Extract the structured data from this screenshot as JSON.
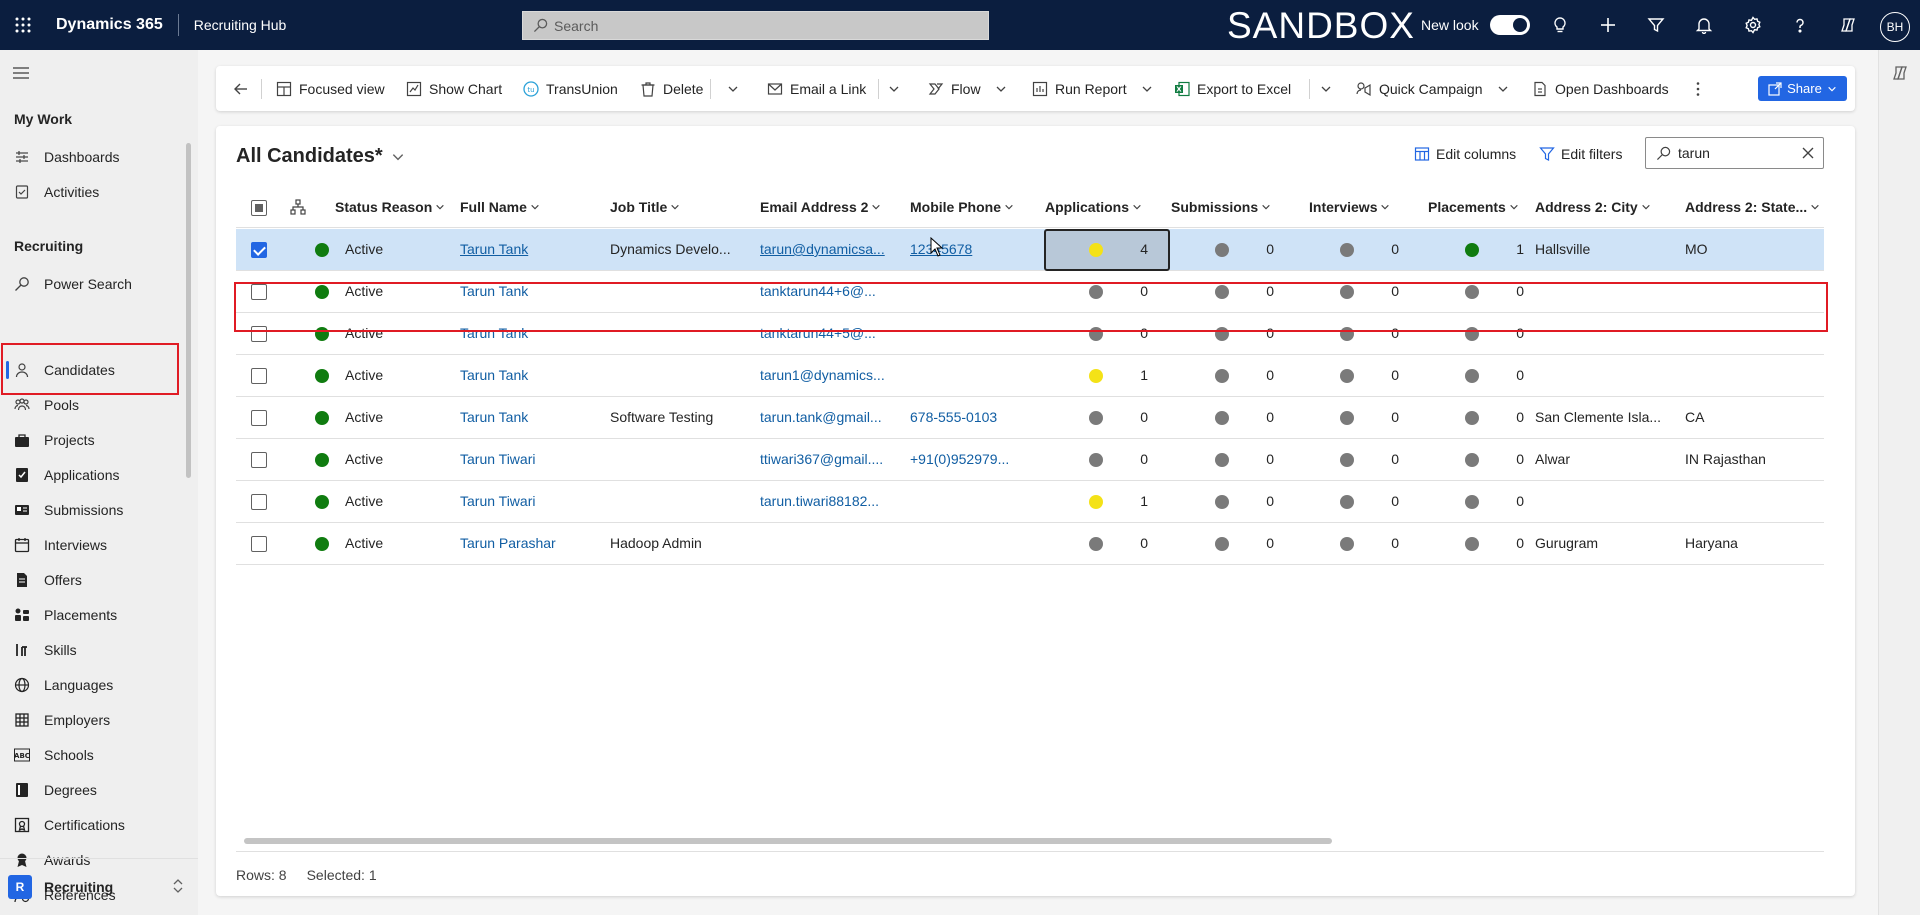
{
  "topbar": {
    "product": "Dynamics 365",
    "app": "Recruiting Hub",
    "search_placeholder": "Search",
    "environment": "SANDBOX",
    "new_look_label": "New look",
    "new_look_on": true,
    "user_initials": "BH",
    "icons": [
      "waffle-icon",
      "lightbulb-icon",
      "plus-icon",
      "filter-icon",
      "bell-icon",
      "gear-icon",
      "help-icon",
      "copilot-icon"
    ]
  },
  "sidebar": {
    "my_work_title": "My Work",
    "my_work": [
      {
        "label": "Dashboards",
        "icon": "dashboard-icon"
      },
      {
        "label": "Activities",
        "icon": "activities-icon"
      }
    ],
    "recruiting_title": "Recruiting",
    "recruiting": [
      {
        "label": "Power Search",
        "icon": "search-icon"
      },
      {
        "label": "Candidates",
        "icon": "person-icon",
        "selected": true
      },
      {
        "label": "Pools",
        "icon": "people-icon"
      },
      {
        "label": "Projects",
        "icon": "briefcase-icon"
      },
      {
        "label": "Applications",
        "icon": "check-doc-icon"
      },
      {
        "label": "Submissions",
        "icon": "card-icon"
      },
      {
        "label": "Interviews",
        "icon": "calendar-icon"
      },
      {
        "label": "Offers",
        "icon": "offer-doc-icon"
      },
      {
        "label": "Placements",
        "icon": "placement-icon"
      },
      {
        "label": "Skills",
        "icon": "skills-icon"
      },
      {
        "label": "Languages",
        "icon": "globe-icon"
      },
      {
        "label": "Employers",
        "icon": "building-icon"
      },
      {
        "label": "Schools",
        "icon": "abc-icon"
      },
      {
        "label": "Degrees",
        "icon": "book-icon"
      },
      {
        "label": "Certifications",
        "icon": "certificate-icon"
      },
      {
        "label": "Awards",
        "icon": "award-icon"
      },
      {
        "label": "References",
        "icon": "reference-icon"
      }
    ],
    "area": {
      "badge": "R",
      "label": "Recruiting"
    }
  },
  "commandbar": {
    "back_icon": "back-arrow-icon",
    "focused_view": "Focused view",
    "show_chart": "Show Chart",
    "transunion": "TransUnion",
    "delete": "Delete",
    "email_link": "Email a Link",
    "flow": "Flow",
    "run_report": "Run Report",
    "export_excel": "Export to Excel",
    "quick_campaign": "Quick Campaign",
    "open_dashboards": "Open Dashboards",
    "share": "Share"
  },
  "view": {
    "title": "All Candidates*",
    "edit_columns": "Edit columns",
    "edit_filters": "Edit filters",
    "quickfind_value": "tarun"
  },
  "columns": [
    "Status Reason",
    "Full Name",
    "Job Title",
    "Email Address 2",
    "Mobile Phone",
    "Applications",
    "Submissions",
    "Interviews",
    "Placements",
    "Address 2: City",
    "Address 2: State..."
  ],
  "status_colors": {
    "green": "#107c10",
    "gray": "#7a7a7a",
    "yellow": "#f4e217"
  },
  "rows": [
    {
      "selected": true,
      "status": "Active",
      "name": "Tarun Tank",
      "job": "Dynamics Develo...",
      "email": "tarun@dynamicsa...",
      "phone": "12345678",
      "apps": "4",
      "apps_color": "yellow",
      "subs": "0",
      "subs_color": "gray",
      "ints": "0",
      "ints_color": "gray",
      "places": "1",
      "places_color": "green",
      "city": "Hallsville",
      "state": "MO"
    },
    {
      "selected": false,
      "status": "Active",
      "name": "Tarun Tank",
      "job": "",
      "email": "tanktarun44+6@...",
      "phone": "",
      "apps": "0",
      "apps_color": "gray",
      "subs": "0",
      "subs_color": "gray",
      "ints": "0",
      "ints_color": "gray",
      "places": "0",
      "places_color": "gray",
      "city": "",
      "state": ""
    },
    {
      "selected": false,
      "status": "Active",
      "name": "Tarun Tank",
      "job": "",
      "email": "tanktarun44+5@...",
      "phone": "",
      "apps": "0",
      "apps_color": "gray",
      "subs": "0",
      "subs_color": "gray",
      "ints": "0",
      "ints_color": "gray",
      "places": "0",
      "places_color": "gray",
      "city": "",
      "state": ""
    },
    {
      "selected": false,
      "status": "Active",
      "name": "Tarun Tank",
      "job": "",
      "email": "tarun1@dynamics...",
      "phone": "",
      "apps": "1",
      "apps_color": "yellow",
      "subs": "0",
      "subs_color": "gray",
      "ints": "0",
      "ints_color": "gray",
      "places": "0",
      "places_color": "gray",
      "city": "",
      "state": ""
    },
    {
      "selected": false,
      "status": "Active",
      "name": "Tarun Tank",
      "job": "Software Testing",
      "email": "tarun.tank@gmail...",
      "phone": "678-555-0103",
      "apps": "0",
      "apps_color": "gray",
      "subs": "0",
      "subs_color": "gray",
      "ints": "0",
      "ints_color": "gray",
      "places": "0",
      "places_color": "gray",
      "city": "San Clemente Isla...",
      "state": "CA"
    },
    {
      "selected": false,
      "status": "Active",
      "name": "Tarun Tiwari",
      "job": "",
      "email": "ttiwari367@gmail....",
      "phone": "+91(0)952979...",
      "apps": "0",
      "apps_color": "gray",
      "subs": "0",
      "subs_color": "gray",
      "ints": "0",
      "ints_color": "gray",
      "places": "0",
      "places_color": "gray",
      "city": "Alwar",
      "state": "IN Rajasthan"
    },
    {
      "selected": false,
      "status": "Active",
      "name": "Tarun Tiwari",
      "job": "",
      "email": "tarun.tiwari88182...",
      "phone": "",
      "apps": "1",
      "apps_color": "yellow",
      "subs": "0",
      "subs_color": "gray",
      "ints": "0",
      "ints_color": "gray",
      "places": "0",
      "places_color": "gray",
      "city": "",
      "state": ""
    },
    {
      "selected": false,
      "status": "Active",
      "name": "Tarun Parashar",
      "job": "Hadoop Admin",
      "email": "",
      "phone": "",
      "apps": "0",
      "apps_color": "gray",
      "subs": "0",
      "subs_color": "gray",
      "ints": "0",
      "ints_color": "gray",
      "places": "0",
      "places_color": "gray",
      "city": "Gurugram",
      "state": "Haryana"
    }
  ],
  "footer": {
    "rows": "Rows: 8",
    "selected": "Selected: 1"
  }
}
